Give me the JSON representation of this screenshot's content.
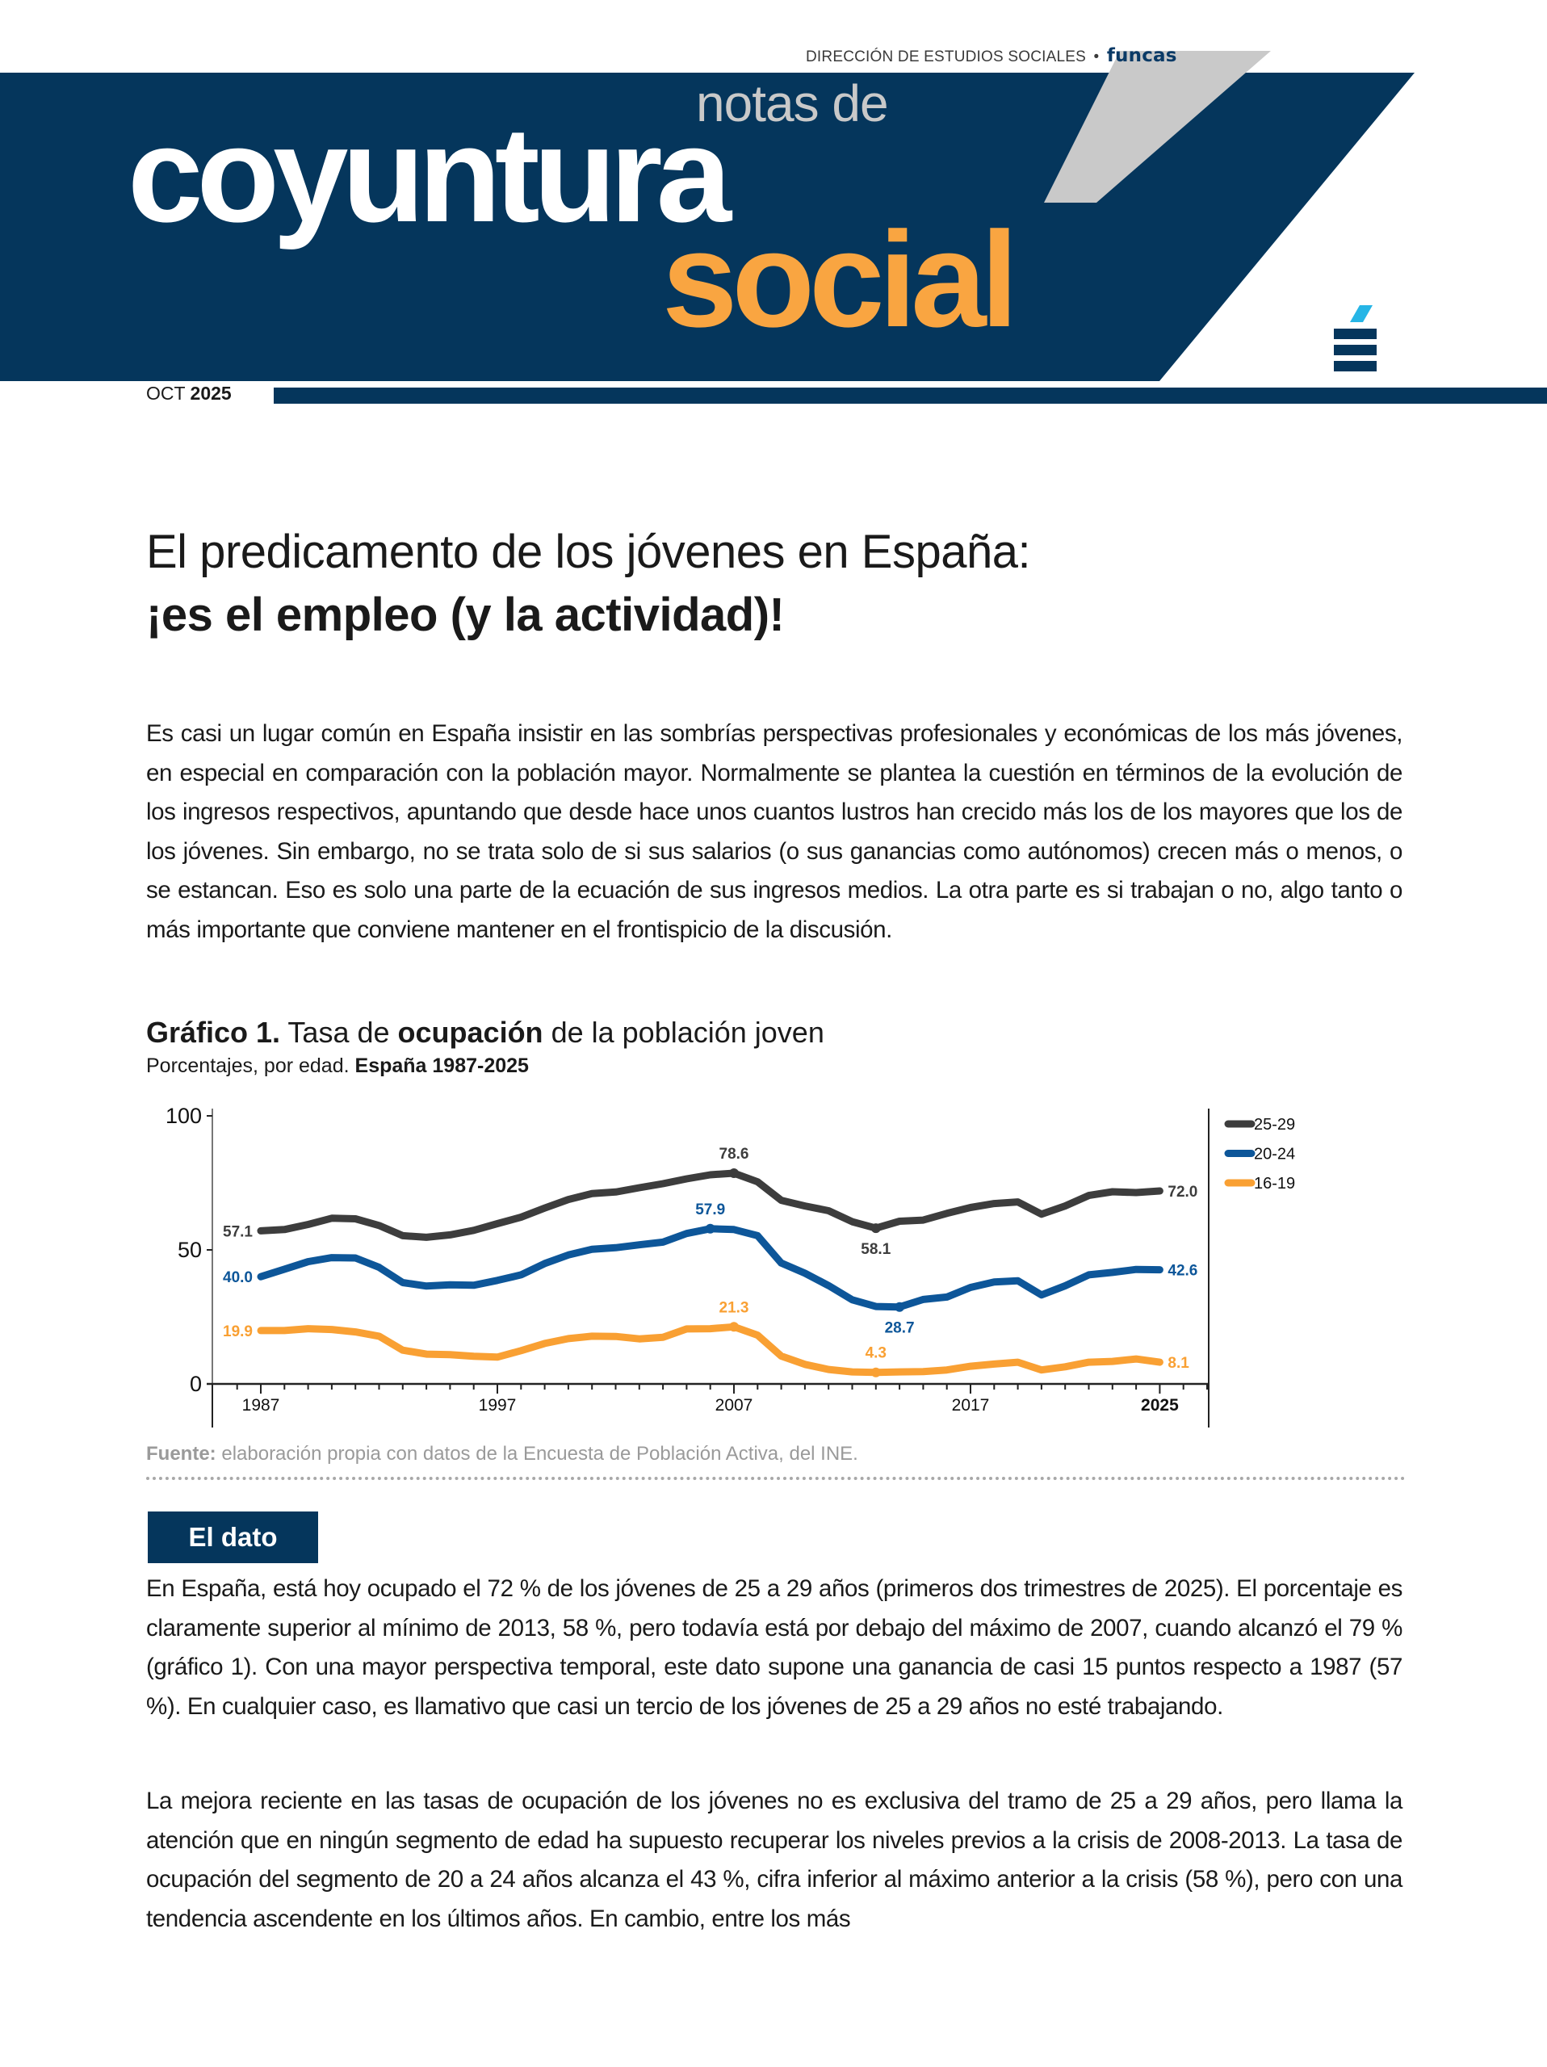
{
  "header": {
    "top_label": "DIRECCIÓN DE ESTUDIOS SOCIALES",
    "separator": "•",
    "brand": "funcas",
    "title_small": "notas de",
    "title_main": "coyuntura",
    "title_accent": "social",
    "date_month": "OCT",
    "date_year": "2025",
    "colors": {
      "navy": "#05365c",
      "orange": "#f9a541",
      "grey": "#c9c9c9",
      "cyan": "#26b5e6"
    }
  },
  "article": {
    "title_line1": "El predicamento de los jóvenes en España:",
    "title_line2": "¡es el empleo (y la actividad)!",
    "intro": "Es casi un lugar común en España insistir en las sombrías perspectivas profesionales y económicas de los más jóvenes, en especial en comparación con la población mayor. Normalmente se plantea la cuestión en términos de la evolución de los ingresos respectivos, apuntando que desde hace unos cuantos lustros han crecido más los de los mayores que los de los jóvenes. Sin embargo, no se trata solo de si sus salarios (o sus ganancias como autónomos) crecen más o menos, o se estancan. Eso es solo una parte de la ecuación de sus ingresos medios. La otra parte es si trabajan o no, algo tanto o más importante que conviene mantener en el frontispicio de la discusión."
  },
  "chart_heading": {
    "label": "Gráfico 1.",
    "text_a": "Tasa de",
    "text_bold": "ocupación",
    "text_b": "de la población joven",
    "sub_a": "Porcentajes, por edad.",
    "sub_bold": "España 1987-2025"
  },
  "chart_data": {
    "type": "line",
    "title": "Gráfico 1. Tasa de ocupación de la población joven",
    "subtitle": "Porcentajes, por edad. España 1987-2025",
    "xlabel": "",
    "ylabel": "",
    "ylim": [
      0,
      100
    ],
    "xlim": [
      1985,
      2027
    ],
    "y_ticks": [
      "0",
      "50",
      "100"
    ],
    "x_ticks": [
      "1987",
      "1997",
      "2007",
      "2017",
      "2025"
    ],
    "legend_position": "right",
    "grid": false,
    "x": [
      1987,
      1988,
      1989,
      1990,
      1991,
      1992,
      1993,
      1994,
      1995,
      1996,
      1997,
      1998,
      1999,
      2000,
      2001,
      2002,
      2003,
      2004,
      2005,
      2006,
      2007,
      2008,
      2009,
      2010,
      2011,
      2012,
      2013,
      2014,
      2015,
      2016,
      2017,
      2018,
      2019,
      2020,
      2021,
      2022,
      2023,
      2024,
      2025
    ],
    "series": [
      {
        "name": "25-29",
        "color": "#3d3d3d",
        "values": [
          57.1,
          57.6,
          59.5,
          61.8,
          61.6,
          59.1,
          55.3,
          54.7,
          55.6,
          57.3,
          59.8,
          62.2,
          65.6,
          68.8,
          71.0,
          71.6,
          73.2,
          74.7,
          76.5,
          78.0,
          78.6,
          75.4,
          68.5,
          66.4,
          64.6,
          60.5,
          58.1,
          60.7,
          61.1,
          63.6,
          65.8,
          67.3,
          67.9,
          63.3,
          66.4,
          70.3,
          71.7,
          71.4,
          72.0
        ],
        "labels": [
          {
            "x": 1987,
            "value": 57.1,
            "text": "57.1",
            "pos": "left"
          },
          {
            "x": 2007,
            "value": 78.6,
            "text": "78.6",
            "pos": "above"
          },
          {
            "x": 2013,
            "value": 58.1,
            "text": "58.1",
            "pos": "below"
          },
          {
            "x": 2025,
            "value": 72.0,
            "text": "72.0",
            "pos": "right"
          }
        ]
      },
      {
        "name": "20-24",
        "color": "#0d5699",
        "values": [
          40.0,
          42.8,
          45.6,
          47.1,
          47.0,
          43.5,
          37.8,
          36.5,
          37.0,
          36.8,
          38.6,
          40.7,
          44.9,
          48.1,
          50.2,
          50.8,
          51.9,
          52.9,
          56.1,
          57.9,
          57.6,
          55.3,
          45.1,
          41.3,
          36.7,
          31.4,
          28.9,
          28.7,
          31.5,
          32.4,
          36.0,
          38.0,
          38.5,
          33.2,
          36.6,
          40.7,
          41.6,
          42.7,
          42.6
        ],
        "labels": [
          {
            "x": 1987,
            "value": 40.0,
            "text": "40.0",
            "pos": "left"
          },
          {
            "x": 2006,
            "value": 57.9,
            "text": "57.9",
            "pos": "above"
          },
          {
            "x": 2014,
            "value": 28.7,
            "text": "28.7",
            "pos": "below"
          },
          {
            "x": 2025,
            "value": 42.6,
            "text": "42.6",
            "pos": "right"
          }
        ]
      },
      {
        "name": "16-19",
        "color": "#f9a033",
        "values": [
          19.9,
          19.9,
          20.6,
          20.3,
          19.4,
          17.8,
          12.6,
          11.1,
          10.9,
          10.3,
          10.0,
          12.4,
          15.1,
          16.9,
          17.8,
          17.7,
          16.8,
          17.4,
          20.5,
          20.6,
          21.3,
          18.2,
          10.4,
          7.3,
          5.4,
          4.5,
          4.3,
          4.5,
          4.6,
          5.2,
          6.6,
          7.4,
          8.1,
          5.2,
          6.4,
          8.1,
          8.4,
          9.3,
          8.1
        ],
        "labels": [
          {
            "x": 1987,
            "value": 19.9,
            "text": "19.9",
            "pos": "left"
          },
          {
            "x": 2007,
            "value": 21.3,
            "text": "21.3",
            "pos": "above"
          },
          {
            "x": 2013,
            "value": 4.3,
            "text": "4.3",
            "pos": "above"
          },
          {
            "x": 2025,
            "value": 8.1,
            "text": "8.1",
            "pos": "right"
          }
        ]
      }
    ]
  },
  "source": {
    "label": "Fuente:",
    "text": "elaboración propia con datos de la Encuesta de Población Activa, del INE."
  },
  "dato": {
    "heading": "El dato",
    "p1": "En España, está hoy ocupado el 72 % de los jóvenes de 25 a 29 años (primeros dos trimestres de 2025). El porcentaje es claramente superior al mínimo de 2013, 58 %, pero todavía está por debajo del máximo de 2007, cuando alcanzó el 79 % (gráfico 1). Con una mayor perspectiva temporal, este dato supone una ganancia de casi 15 puntos respecto a 1987 (57 %). En cualquier caso, es llamativo que casi un tercio de los jóvenes de 25 a 29 años no esté trabajando.",
    "p2": "La mejora reciente en las tasas de ocupación de los jóvenes no es exclusiva del tramo de 25 a 29 años, pero llama la atención que en ningún segmento de edad ha supuesto recuperar los niveles previos a la crisis de 2008-2013. La tasa de ocupación del segmento de 20 a 24 años alcanza el 43 %, cifra inferior al máximo anterior a la crisis (58 %), pero con una tendencia ascendente en los últimos años. En cambio, entre los más"
  }
}
